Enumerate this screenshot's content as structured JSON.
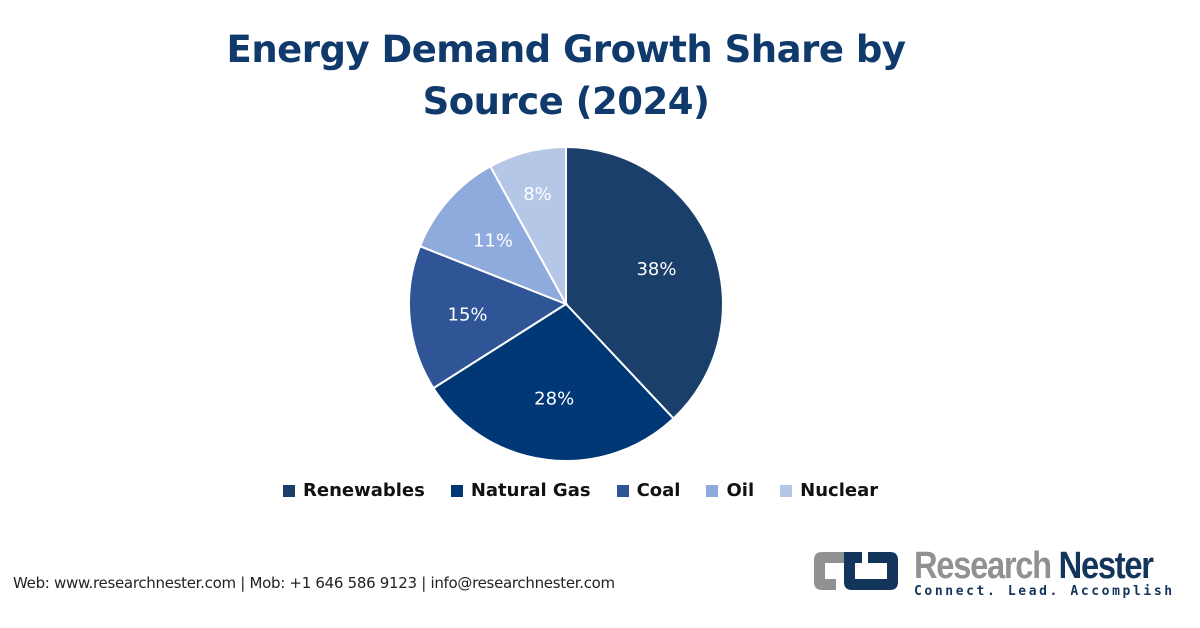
{
  "chart_data": {
    "type": "pie",
    "title": "Energy Demand Growth Share by Source (2024)",
    "title_lines": [
      "Energy Demand Growth Share by",
      "Source (2024)"
    ],
    "categories": [
      "Renewables",
      "Natural Gas",
      "Coal",
      "Oil",
      "Nuclear"
    ],
    "values": [
      38,
      28,
      15,
      11,
      8
    ],
    "data_labels": [
      "38%",
      "28%",
      "15%",
      "11%",
      "8%"
    ],
    "unit": "%",
    "colors": [
      "#1a3f6b",
      "#003876",
      "#2f5597",
      "#8faadc",
      "#b4c7e7"
    ],
    "start_angle": "12 o'clock",
    "direction": "clockwise",
    "legend_position": "bottom",
    "data_label_color": "#ffffff"
  },
  "legend": {
    "items": [
      {
        "label": "Renewables",
        "color": "#1a3f6b"
      },
      {
        "label": "Natural Gas",
        "color": "#003876"
      },
      {
        "label": "Coal",
        "color": "#2f5597"
      },
      {
        "label": "Oil",
        "color": "#8faadc"
      },
      {
        "label": "Nuclear",
        "color": "#b4c7e7"
      }
    ]
  },
  "footer": {
    "contact": "Web: www.researchnester.com | Mob: +1 646 586 9123 | info@researchnester.com"
  },
  "logo": {
    "name_part1": "Research",
    "name_part2": "Nester",
    "tagline": "Connect. Lead. Accomplish",
    "icon": "linked-brackets-logo-icon"
  },
  "colors": {
    "title": "#0f3a6b",
    "logo_gray": "#8f9193",
    "logo_navy": "#13355b"
  }
}
